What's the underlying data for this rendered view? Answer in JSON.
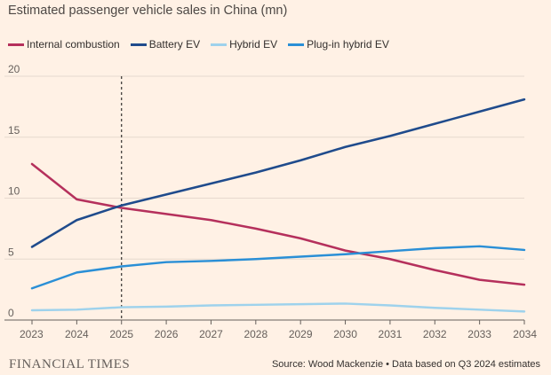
{
  "chart_data": {
    "type": "line",
    "title": "Estimated passenger vehicle sales in China (mn)",
    "x": [
      2023,
      2024,
      2025,
      2026,
      2027,
      2028,
      2029,
      2030,
      2031,
      2032,
      2033,
      2034
    ],
    "xlim": [
      2023,
      2034
    ],
    "ylim": [
      0,
      20
    ],
    "yticks": [
      0,
      5,
      10,
      15,
      20
    ],
    "grid": true,
    "vline_x": 2025,
    "series": [
      {
        "name": "Internal combustion",
        "color": "#b5305c",
        "values": [
          12.8,
          9.9,
          9.2,
          8.7,
          8.2,
          7.5,
          6.7,
          5.7,
          5.0,
          4.1,
          3.3,
          2.9
        ]
      },
      {
        "name": "Battery EV",
        "color": "#1f4b8c",
        "values": [
          6.0,
          8.2,
          9.4,
          10.3,
          11.2,
          12.1,
          13.1,
          14.2,
          15.1,
          16.1,
          17.1,
          18.1
        ]
      },
      {
        "name": "Hybrid EV",
        "color": "#9ed2ec",
        "values": [
          0.8,
          0.85,
          1.05,
          1.1,
          1.2,
          1.25,
          1.3,
          1.35,
          1.2,
          1.0,
          0.85,
          0.7
        ]
      },
      {
        "name": "Plug-in hybrid EV",
        "color": "#2a8fd6",
        "values": [
          2.6,
          3.9,
          4.4,
          4.75,
          4.85,
          5.0,
          5.2,
          5.4,
          5.65,
          5.9,
          6.05,
          5.75
        ]
      }
    ]
  },
  "footer": {
    "brand": "FINANCIAL TIMES",
    "source": "Source: Wood Mackenzie • Data based on Q3 2024 estimates"
  }
}
